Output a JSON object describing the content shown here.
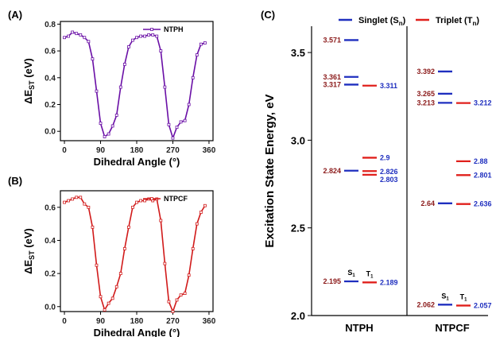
{
  "colors": {
    "singlet": "#1f2fbf",
    "triplet": "#e0201c",
    "ntph": "#6a0fa6",
    "ntpcf": "#d11a1a",
    "left_value_label": "#8b1a1a",
    "right_value_label": "#1f2fbf"
  },
  "chart_data": [
    {
      "panel": "(A)",
      "type": "line",
      "legend": "NTPH",
      "xlabel": "Dihedral Angle (°)",
      "ylabel": "ΔE",
      "ylabel_sub": "ST",
      "ylabel_unit": " (eV)",
      "xlim": [
        -10,
        370
      ],
      "ylim": [
        -0.07,
        0.82
      ],
      "xticks": [
        0,
        90,
        180,
        270,
        360
      ],
      "yticks": [
        0.0,
        0.2,
        0.4,
        0.6,
        0.8
      ],
      "ytick_labels": [
        "0.0",
        "0.2",
        "0.4",
        "0.6",
        "0.8"
      ],
      "x": [
        0,
        10,
        20,
        30,
        40,
        50,
        60,
        70,
        80,
        90,
        100,
        110,
        120,
        130,
        140,
        150,
        160,
        170,
        180,
        190,
        200,
        210,
        220,
        230,
        240,
        250,
        260,
        270,
        280,
        290,
        300,
        310,
        320,
        330,
        340,
        350
      ],
      "y": [
        0.7,
        0.71,
        0.74,
        0.73,
        0.72,
        0.7,
        0.67,
        0.54,
        0.3,
        0.06,
        -0.04,
        -0.02,
        0.04,
        0.12,
        0.33,
        0.5,
        0.63,
        0.68,
        0.7,
        0.71,
        0.71,
        0.72,
        0.72,
        0.71,
        0.6,
        0.33,
        0.05,
        -0.05,
        0.03,
        0.07,
        0.08,
        0.2,
        0.4,
        0.57,
        0.65,
        0.66
      ]
    },
    {
      "panel": "(B)",
      "type": "line",
      "legend": "NTPCF",
      "xlabel": "Dihedral Angle (°)",
      "ylabel": "ΔE",
      "ylabel_sub": "ST",
      "ylabel_unit": " (eV)",
      "xlim": [
        -10,
        370
      ],
      "ylim": [
        -0.03,
        0.7
      ],
      "xticks": [
        0,
        90,
        180,
        270,
        360
      ],
      "yticks": [
        0.0,
        0.2,
        0.4,
        0.6
      ],
      "ytick_labels": [
        "0.0",
        "0.2",
        "0.4",
        "0.6"
      ],
      "x": [
        0,
        10,
        20,
        30,
        40,
        50,
        60,
        70,
        80,
        90,
        100,
        110,
        120,
        130,
        140,
        150,
        160,
        170,
        180,
        190,
        200,
        210,
        220,
        230,
        240,
        250,
        260,
        270,
        280,
        290,
        300,
        310,
        320,
        330,
        340,
        350
      ],
      "y": [
        0.63,
        0.64,
        0.65,
        0.66,
        0.66,
        0.62,
        0.6,
        0.48,
        0.25,
        0.06,
        -0.02,
        0.02,
        0.05,
        0.12,
        0.2,
        0.35,
        0.48,
        0.6,
        0.63,
        0.64,
        0.64,
        0.65,
        0.64,
        0.65,
        0.52,
        0.26,
        0.03,
        -0.03,
        0.04,
        0.07,
        0.08,
        0.19,
        0.35,
        0.5,
        0.57,
        0.61
      ]
    },
    {
      "panel": "(C)",
      "type": "energy-level",
      "ylabel": "Excitation State Energy, eV",
      "ylim": [
        2.0,
        3.65
      ],
      "yticks": [
        2.0,
        2.5,
        3.0,
        3.5
      ],
      "ytick_labels": [
        "2.0",
        "2.5",
        "3.0",
        "3.5"
      ],
      "legend": [
        {
          "kind": "singlet",
          "label": "Singlet (S",
          "sub": "n",
          "close": ")"
        },
        {
          "kind": "triplet",
          "label": "Triplet (T",
          "sub": "n",
          "close": ")"
        }
      ],
      "molecules": [
        {
          "name": "NTPH",
          "singlets": [
            3.571,
            3.361,
            3.317,
            2.826,
            2.195
          ],
          "singlet_labels": [
            "3.571",
            "3.361",
            "3.317",
            "2.826",
            "2.195"
          ],
          "triplets": [
            3.311,
            2.9,
            2.824,
            2.803,
            2.189
          ],
          "triplet_labels": [
            "3.311",
            "2.9",
            "2.824",
            "2.803",
            "2.189"
          ],
          "s1_label": "S",
          "s1_sub": "1",
          "t1_label": "T",
          "t1_sub": "1"
        },
        {
          "name": "NTPCF",
          "singlets": [
            3.392,
            3.265,
            3.213,
            2.64,
            2.062
          ],
          "singlet_labels": [
            "3.392",
            "3.265",
            "3.213",
            "2.64",
            "2.062"
          ],
          "triplets": [
            3.212,
            2.88,
            2.801,
            2.636,
            2.057
          ],
          "triplet_labels": [
            "3.212",
            "2.88",
            "2.801",
            "2.636",
            "2.057"
          ],
          "s1_label": "S",
          "s1_sub": "1",
          "t1_label": "T",
          "t1_sub": "1"
        }
      ]
    }
  ]
}
